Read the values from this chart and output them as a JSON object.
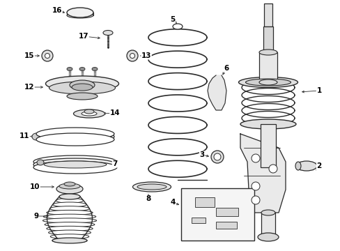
{
  "background_color": "#ffffff",
  "line_color": "#2a2a2a",
  "fig_width": 4.89,
  "fig_height": 3.6,
  "dpi": 100,
  "xlim": [
    0,
    489
  ],
  "ylim": [
    0,
    360
  ]
}
